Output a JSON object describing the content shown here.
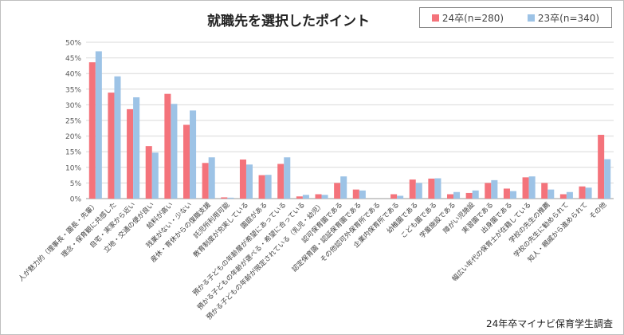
{
  "chart_data": {
    "type": "bar",
    "title": "就職先を選択したポイント",
    "source": "24年卒マイナビ保育学生調査",
    "ylim": [
      0,
      50
    ],
    "yticks": [
      "0%",
      "5%",
      "10%",
      "15%",
      "20%",
      "25%",
      "30%",
      "35%",
      "40%",
      "45%",
      "50%"
    ],
    "grid": true,
    "legend_position": "top-right",
    "colors": {
      "series_24": "#f4737b",
      "series_23": "#9dc3e6"
    },
    "categories": [
      "人が魅力的（理事長・園長・先輩）",
      "理念・保育観に共感した",
      "自宅・実家から近い",
      "立地・交通の便が良い",
      "給料が高い",
      "残業がない・少ない",
      "産休・育休からの復職支援",
      "託児所利用可能",
      "教育制度が充実している",
      "園庭がある",
      "預かる子どもの年齢層が希望にあっている",
      "預かる子どもの年齢が選べる・希望に合っている",
      "預かる子どもの年齢が限定されている（乳児・幼児）",
      "認可保育園である",
      "認定保育園・認証保育園である",
      "その他認可外保育所である",
      "企業内保育所である",
      "幼稚園である",
      "こども園である",
      "学童施設である",
      "障がい児施設",
      "実習園である",
      "出身園である",
      "幅広い年代の保育士が在籍している",
      "学校の先生の推薦",
      "学校の先生に勧められて",
      "知人・親戚から進められて",
      "その他"
    ],
    "series": [
      {
        "name": "24卒(n=280)",
        "values": [
          43.6,
          33.9,
          28.6,
          16.8,
          33.5,
          23.6,
          11.4,
          0.4,
          12.5,
          7.5,
          11.1,
          0.7,
          1.4,
          5.0,
          2.9,
          0,
          1.4,
          6.1,
          6.4,
          1.4,
          1.8,
          5.0,
          3.2,
          6.8,
          5.0,
          1.4,
          3.9,
          20.4
        ]
      },
      {
        "name": "23卒(n=340)",
        "values": [
          47.1,
          39.1,
          32.4,
          14.7,
          30.3,
          28.2,
          13.2,
          0.3,
          10.9,
          7.6,
          13.2,
          1.2,
          1.2,
          7.1,
          2.6,
          0,
          0.9,
          5.0,
          6.5,
          2.1,
          2.6,
          5.9,
          2.4,
          7.1,
          2.9,
          2.1,
          3.5,
          12.6
        ]
      }
    ]
  }
}
